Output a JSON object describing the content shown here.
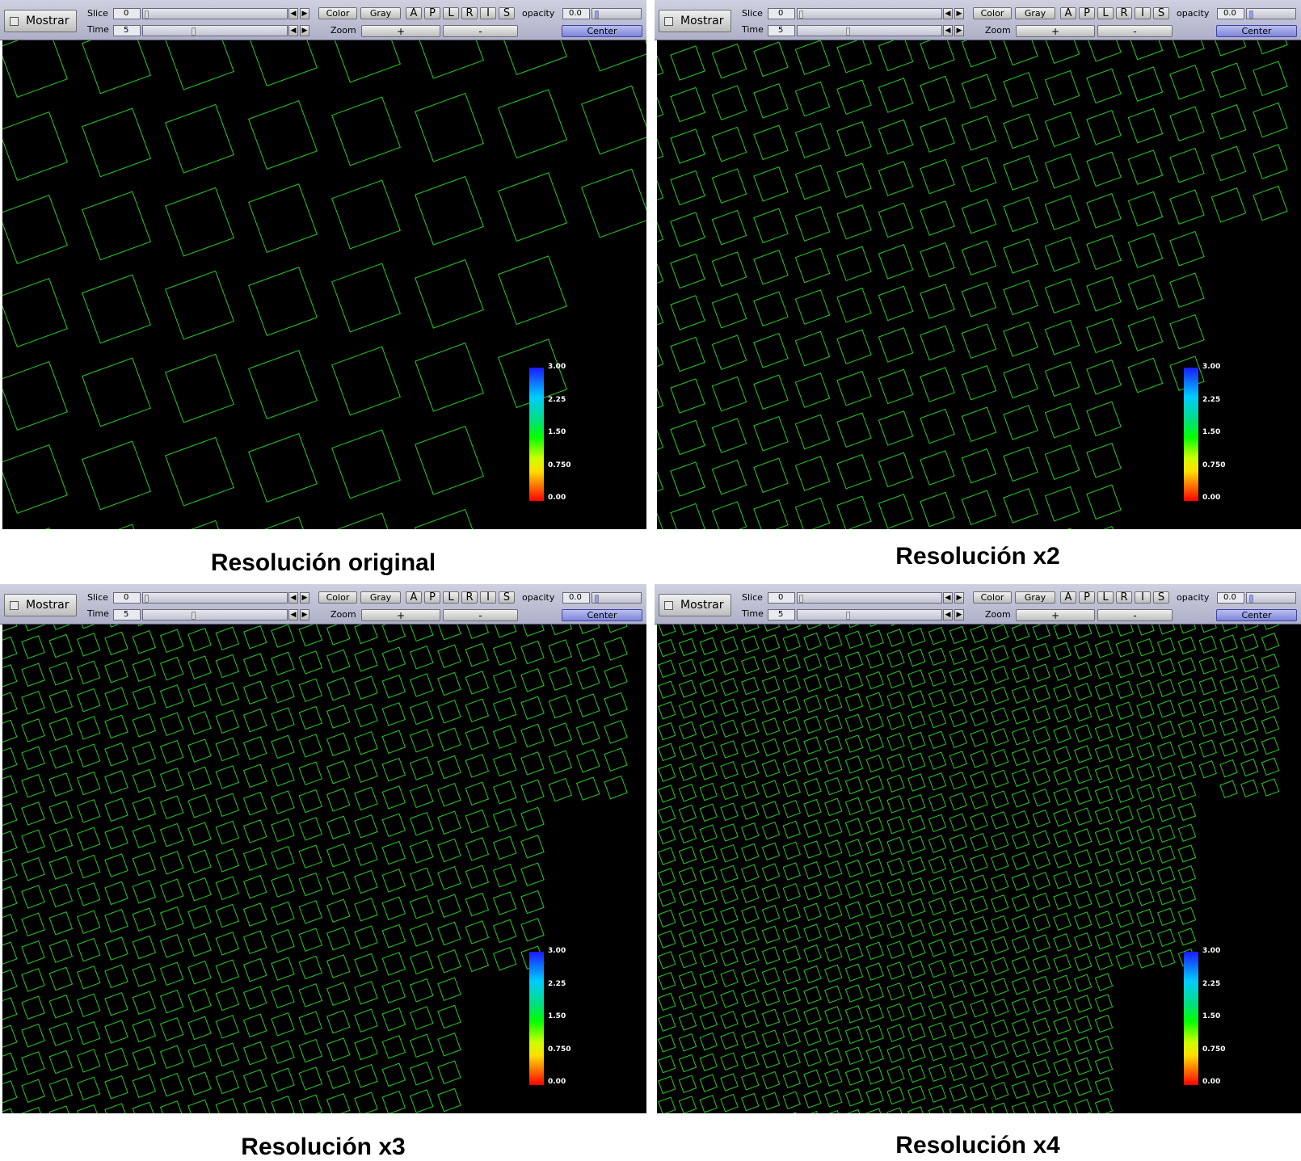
{
  "toolbar": {
    "mostrar": "Mostrar",
    "slice_label": "Slice",
    "slice_value": "0",
    "time_label": "Time",
    "time_value": "5",
    "color_button": "Color",
    "gray_button": "Gray",
    "view_buttons": [
      "A",
      "P",
      "L",
      "R",
      "I",
      "S"
    ],
    "opacity_label": "opacity",
    "opacity_value": "0.0",
    "zoom_label": "Zoom",
    "zoom_in": "+",
    "zoom_out": "-",
    "center_button": "Center"
  },
  "colorbar": {
    "labels": [
      "3.00",
      "2.25",
      "1.50",
      "0.750",
      "0.00"
    ],
    "gradient_colors": [
      "#1a1aff",
      "#00ccff",
      "#00ff00",
      "#ffdd00",
      "#ff0000"
    ]
  },
  "grid_color": "#22cc22",
  "panels": [
    {
      "caption": "Resolución original",
      "scale": 1
    },
    {
      "caption": "Resolución x2",
      "scale": 2
    },
    {
      "caption": "Resolución x3",
      "scale": 3
    },
    {
      "caption": "Resolución x4",
      "scale": 4
    }
  ]
}
